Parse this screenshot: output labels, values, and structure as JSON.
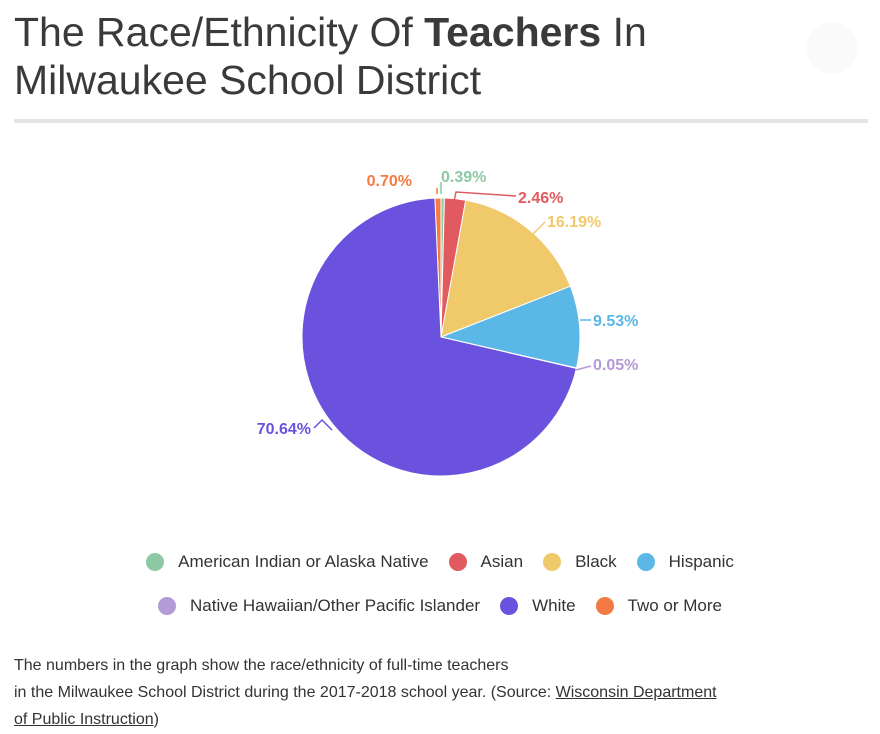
{
  "header": {
    "title_pre": "The Race/Ethnicity Of ",
    "title_bold": "Teachers",
    "title_post": " In Milwaukee School District"
  },
  "chart_data": {
    "type": "pie",
    "title": "The Race/Ethnicity Of Teachers In Milwaukee School District",
    "slices": [
      {
        "name": "American Indian or Alaska Native",
        "value": 0.39,
        "label": "0.39%",
        "color": "#8cc9a4"
      },
      {
        "name": "Asian",
        "value": 2.46,
        "label": "2.46%",
        "color": "#e05a5f"
      },
      {
        "name": "Black",
        "value": 16.19,
        "label": "16.19%",
        "color": "#f0c96b"
      },
      {
        "name": "Hispanic",
        "value": 9.53,
        "label": "9.53%",
        "color": "#5ab7e6"
      },
      {
        "name": "Native Hawaiian/Other Pacific Islander",
        "value": 0.05,
        "label": "0.05%",
        "color": "#b49ad6"
      },
      {
        "name": "White",
        "value": 70.64,
        "label": "70.64%",
        "color": "#6b52de"
      },
      {
        "name": "Two or More",
        "value": 0.7,
        "label": "0.70%",
        "color": "#f47a43"
      }
    ],
    "legend_position": "bottom"
  },
  "caption": {
    "line1": "The numbers in the graph show the race/ethnicity of full-time teachers",
    "line2": "in the Milwaukee School District during the 2017-2018 school year. (Source: ",
    "link_text_1": "Wisconsin Department",
    "link_text_2": "of Public Instruction",
    "close": ")"
  }
}
